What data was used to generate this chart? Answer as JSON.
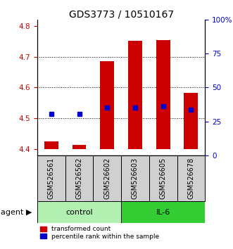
{
  "title": "GDS3773 / 10510167",
  "samples": [
    "GSM526561",
    "GSM526562",
    "GSM526602",
    "GSM526603",
    "GSM526605",
    "GSM526678"
  ],
  "red_bar_bottom": 4.4,
  "red_bar_top": [
    4.425,
    4.413,
    4.685,
    4.752,
    4.755,
    4.582
  ],
  "blue_y_left": [
    4.515,
    4.515,
    4.535,
    4.535,
    4.54,
    4.527
  ],
  "ylim_left": [
    4.38,
    4.82
  ],
  "ylim_right": [
    0,
    100
  ],
  "yticks_left": [
    4.4,
    4.5,
    4.6,
    4.7,
    4.8
  ],
  "yticks_right": [
    0,
    25,
    50,
    75,
    100
  ],
  "ytick_labels_right": [
    "0",
    "25",
    "50",
    "75",
    "100%"
  ],
  "groups": [
    {
      "label": "control",
      "indices": [
        0,
        1,
        2
      ],
      "color": "#b2f0b2"
    },
    {
      "label": "IL-6",
      "indices": [
        3,
        4,
        5
      ],
      "color": "#33cc33"
    }
  ],
  "red_color": "#cc0000",
  "blue_color": "#0000cc",
  "bar_width": 0.5,
  "blue_marker_size": 4,
  "agent_label": "agent",
  "legend_items": [
    "transformed count",
    "percentile rank within the sample"
  ],
  "title_fontsize": 10,
  "tick_fontsize": 7.5,
  "label_fontsize": 8,
  "sample_fontsize": 7
}
